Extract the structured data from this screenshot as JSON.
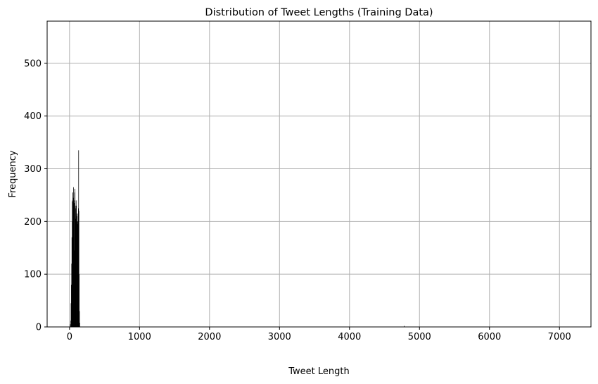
{
  "chart_data": {
    "type": "bar",
    "title": "Distribution of Tweet Lengths (Training Data)",
    "xlabel": "Tweet Length",
    "ylabel": "Frequency",
    "xlim": [
      -320,
      7450
    ],
    "ylim": [
      0,
      580
    ],
    "xticks": [
      0,
      1000,
      2000,
      3000,
      4000,
      5000,
      6000,
      7000
    ],
    "yticks": [
      0,
      100,
      200,
      300,
      400,
      500
    ],
    "grid": true,
    "bar_color": "#000000",
    "bins": [
      {
        "x": 12,
        "y": 5
      },
      {
        "x": 18,
        "y": 12
      },
      {
        "x": 22,
        "y": 45
      },
      {
        "x": 26,
        "y": 80
      },
      {
        "x": 30,
        "y": 120
      },
      {
        "x": 34,
        "y": 170
      },
      {
        "x": 38,
        "y": 238
      },
      {
        "x": 42,
        "y": 240
      },
      {
        "x": 46,
        "y": 255
      },
      {
        "x": 50,
        "y": 200
      },
      {
        "x": 54,
        "y": 245
      },
      {
        "x": 58,
        "y": 265
      },
      {
        "x": 62,
        "y": 235
      },
      {
        "x": 66,
        "y": 145
      },
      {
        "x": 70,
        "y": 240
      },
      {
        "x": 74,
        "y": 255
      },
      {
        "x": 78,
        "y": 262
      },
      {
        "x": 82,
        "y": 230
      },
      {
        "x": 86,
        "y": 225
      },
      {
        "x": 90,
        "y": 205
      },
      {
        "x": 94,
        "y": 240
      },
      {
        "x": 98,
        "y": 230
      },
      {
        "x": 102,
        "y": 215
      },
      {
        "x": 106,
        "y": 210
      },
      {
        "x": 110,
        "y": 200
      },
      {
        "x": 114,
        "y": 195
      },
      {
        "x": 118,
        "y": 200
      },
      {
        "x": 122,
        "y": 215
      },
      {
        "x": 126,
        "y": 225
      },
      {
        "x": 130,
        "y": 335
      },
      {
        "x": 134,
        "y": 220
      },
      {
        "x": 138,
        "y": 100
      },
      {
        "x": 142,
        "y": 30
      },
      {
        "x": 146,
        "y": 8
      },
      {
        "x": 4780,
        "y": 2
      }
    ]
  }
}
